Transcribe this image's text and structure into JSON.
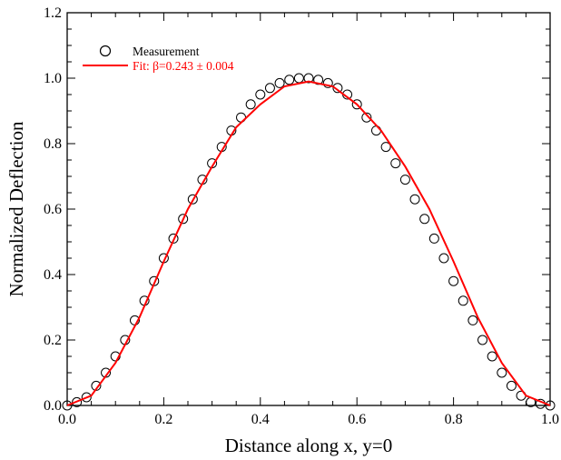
{
  "chart_data": {
    "type": "scatter",
    "xlabel": "Distance along x, y=0",
    "ylabel": "Normalized Deflection",
    "xlim": [
      0.0,
      1.0
    ],
    "ylim": [
      0.0,
      1.2
    ],
    "x_ticks": [
      "0.0",
      "0.2",
      "0.4",
      "0.6",
      "0.8",
      "1.0"
    ],
    "y_ticks": [
      "0.0",
      "0.2",
      "0.4",
      "0.6",
      "0.8",
      "1.0",
      "1.2"
    ],
    "grid": false,
    "legend_position": "top-left",
    "series": [
      {
        "name": "Measurement",
        "kind": "scatter",
        "marker": "open-circle",
        "color": "#000000",
        "x": [
          0.0,
          0.02,
          0.04,
          0.06,
          0.08,
          0.1,
          0.12,
          0.14,
          0.16,
          0.18,
          0.2,
          0.22,
          0.24,
          0.26,
          0.28,
          0.3,
          0.32,
          0.34,
          0.36,
          0.38,
          0.4,
          0.42,
          0.44,
          0.46,
          0.48,
          0.5,
          0.52,
          0.54,
          0.56,
          0.58,
          0.6,
          0.62,
          0.64,
          0.66,
          0.68,
          0.7,
          0.72,
          0.74,
          0.76,
          0.78,
          0.8,
          0.82,
          0.84,
          0.86,
          0.88,
          0.9,
          0.92,
          0.94,
          0.96,
          0.98,
          1.0
        ],
        "y": [
          0.0,
          0.01,
          0.025,
          0.06,
          0.1,
          0.15,
          0.2,
          0.26,
          0.32,
          0.38,
          0.45,
          0.51,
          0.57,
          0.63,
          0.69,
          0.74,
          0.79,
          0.84,
          0.88,
          0.92,
          0.95,
          0.97,
          0.985,
          0.995,
          1.0,
          1.0,
          0.995,
          0.985,
          0.97,
          0.95,
          0.92,
          0.88,
          0.84,
          0.79,
          0.74,
          0.69,
          0.63,
          0.57,
          0.51,
          0.45,
          0.38,
          0.32,
          0.26,
          0.2,
          0.15,
          0.1,
          0.06,
          0.03,
          0.01,
          0.005,
          0.0
        ]
      },
      {
        "name": "Fit: β=0.243 ± 0.004",
        "kind": "line",
        "color": "#ff0000",
        "x": [
          0.0,
          0.05,
          0.1,
          0.15,
          0.2,
          0.25,
          0.3,
          0.35,
          0.4,
          0.45,
          0.5,
          0.55,
          0.6,
          0.65,
          0.7,
          0.75,
          0.8,
          0.85,
          0.9,
          0.95,
          1.0
        ],
        "y": [
          0.0,
          0.03,
          0.13,
          0.27,
          0.44,
          0.6,
          0.73,
          0.85,
          0.92,
          0.975,
          0.99,
          0.975,
          0.92,
          0.84,
          0.73,
          0.6,
          0.44,
          0.27,
          0.13,
          0.03,
          0.0
        ]
      }
    ]
  }
}
